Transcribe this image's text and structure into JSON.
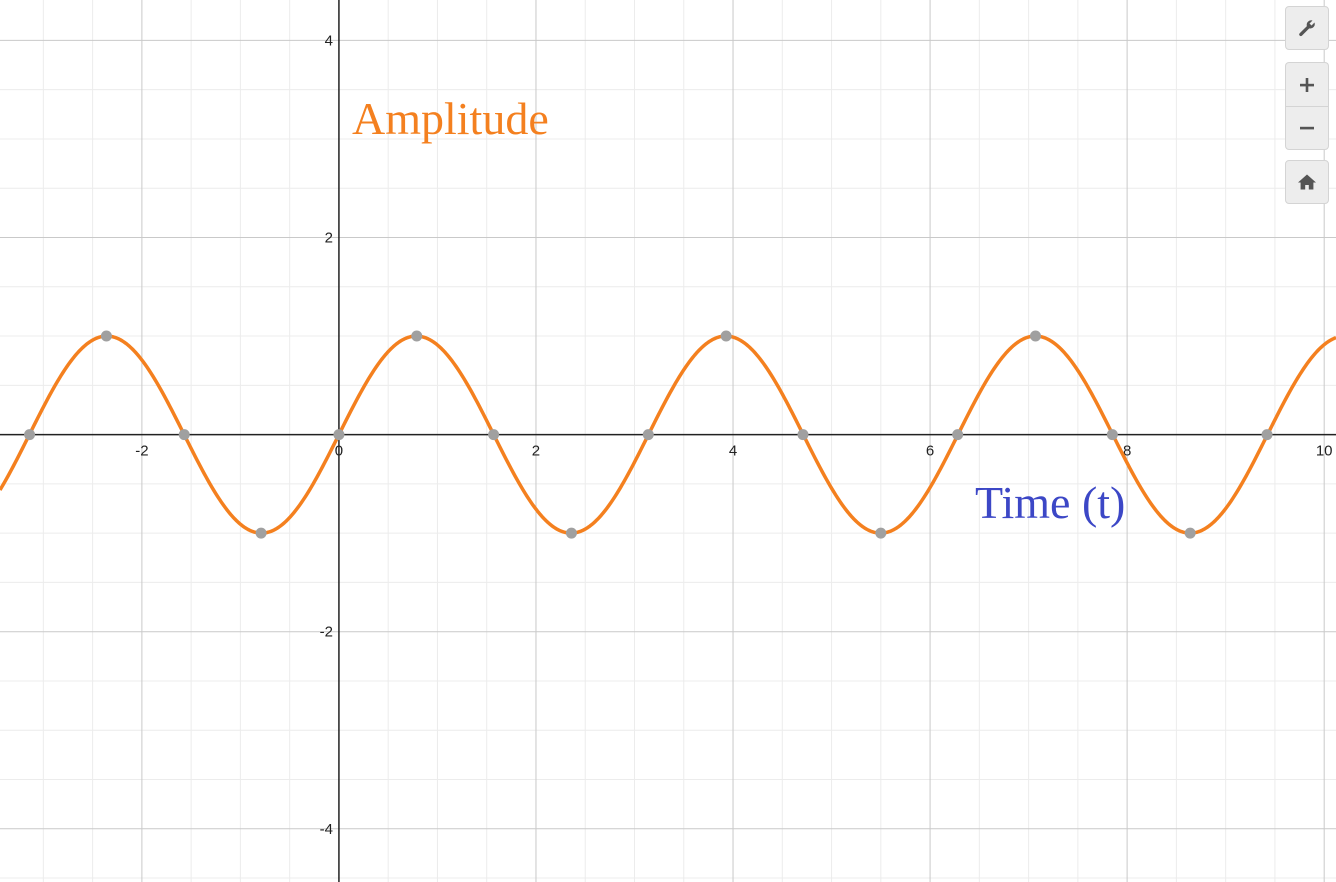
{
  "chart_data": {
    "type": "line",
    "annotations": {
      "y_label": "Amplitude",
      "x_label": "Time (t)"
    },
    "xlim": [
      -3.44,
      10.12
    ],
    "ylim": [
      -4.54,
      4.41
    ],
    "x_ticks": [
      -2,
      0,
      2,
      4,
      6,
      8,
      10
    ],
    "y_ticks": [
      -4,
      -2,
      2,
      4
    ],
    "grid": true,
    "series": [
      {
        "function": "y = sin(2t)",
        "color": "#f4801f",
        "x": [
          -3.44,
          -3.14,
          -2.36,
          -1.57,
          -0.79,
          0,
          0.79,
          1.57,
          2.36,
          3.14,
          3.93,
          4.71,
          5.5,
          6.28,
          7.07,
          7.85,
          8.64,
          9.42,
          10.12
        ],
        "y": [
          -0.56,
          0,
          1,
          0,
          -1,
          0,
          1,
          0,
          -1,
          0,
          1,
          0,
          -1,
          0,
          1,
          0,
          -1,
          0,
          0.97
        ]
      }
    ],
    "marked_points": {
      "color": "#a0a0a0",
      "x": [
        -3.14,
        -2.36,
        -1.57,
        -0.79,
        0,
        0.79,
        1.57,
        2.36,
        3.14,
        3.93,
        4.71,
        5.5,
        6.28,
        7.07,
        7.85,
        8.64,
        9.42
      ],
      "y": [
        0,
        1,
        0,
        -1,
        0,
        1,
        0,
        -1,
        0,
        1,
        0,
        -1,
        0,
        1,
        0,
        -1,
        0
      ]
    },
    "colors": {
      "y_label": "#f4801f",
      "x_label": "#3c47c6",
      "major_grid": "#c9c9c9",
      "minor_grid": "#ececec",
      "axis": "#222222"
    }
  },
  "toolbar": {
    "settings": {
      "icon": "wrench-icon"
    },
    "zoom_in": {
      "icon": "plus-icon"
    },
    "zoom_out": {
      "icon": "minus-icon"
    },
    "home": {
      "icon": "home-icon"
    }
  }
}
